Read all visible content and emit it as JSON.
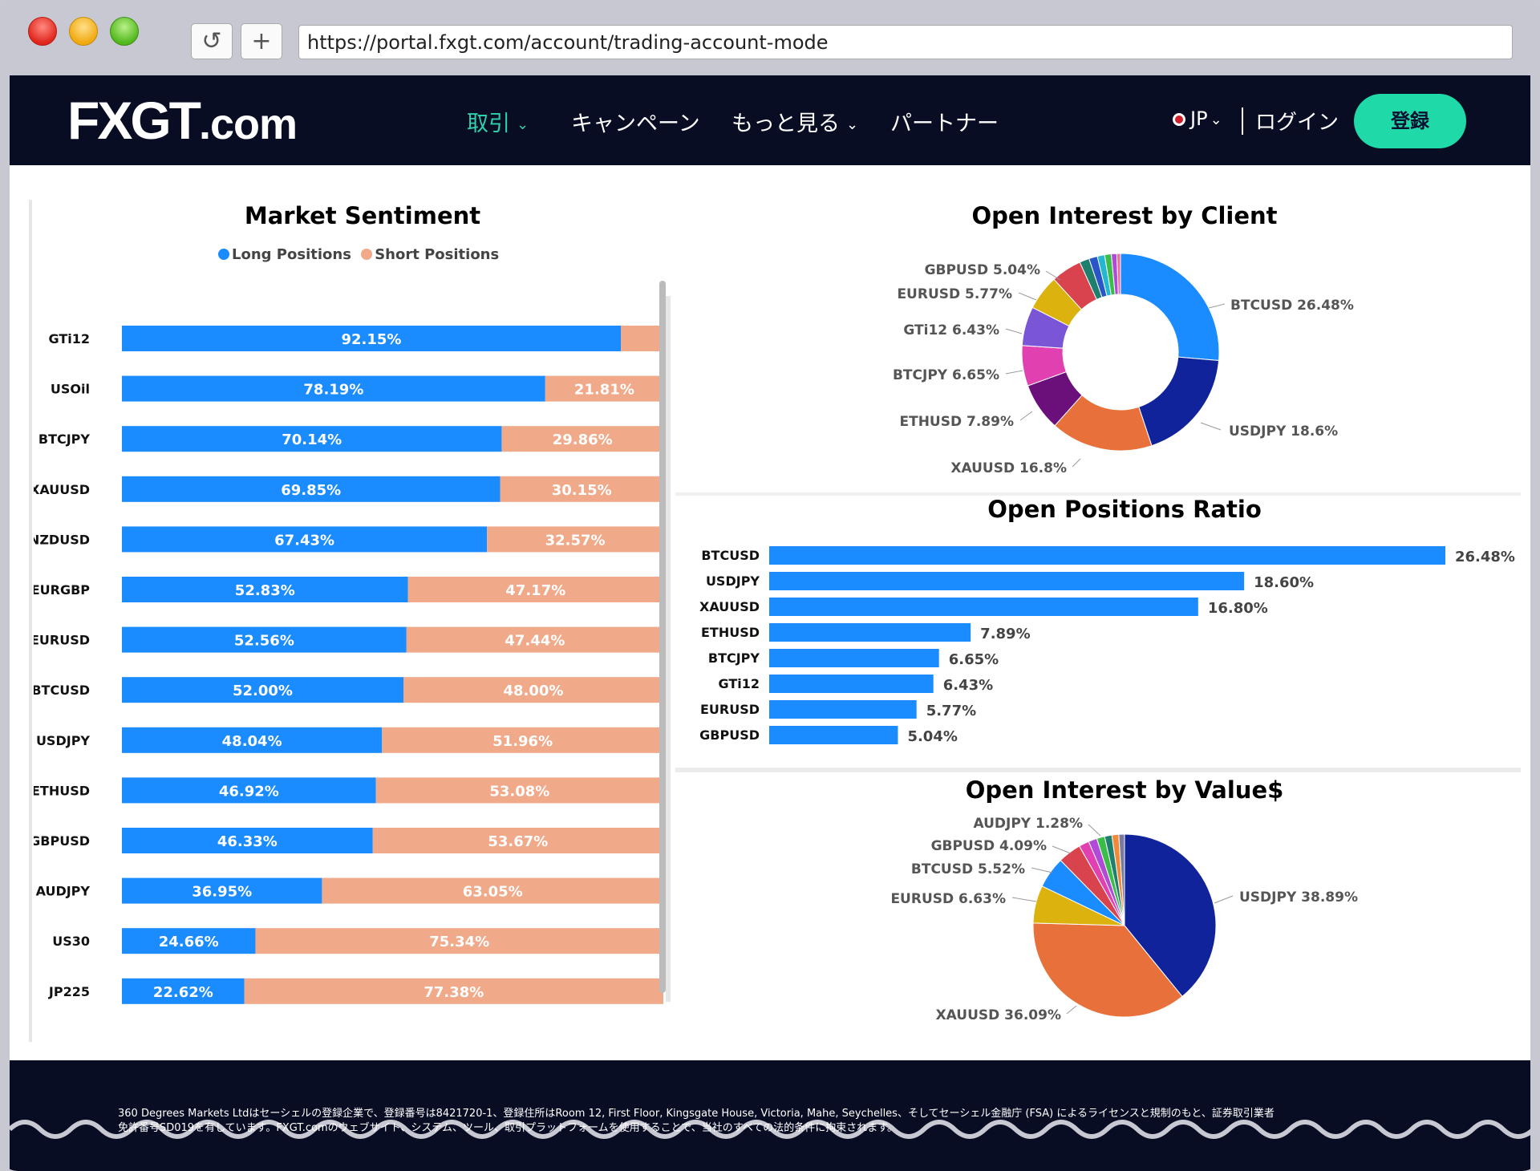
{
  "browser": {
    "url": "https://portal.fxgt.com/account/trading-account-mode",
    "reload_icon": "reload-icon",
    "newtab_icon": "plus-icon"
  },
  "nav": {
    "logo_main": "FXGT",
    "logo_suffix": ".com",
    "items": [
      {
        "label": "取引",
        "dropdown": true,
        "active": true
      },
      {
        "label": "キャンペーン",
        "dropdown": false,
        "active": false
      },
      {
        "label": "もっと見る",
        "dropdown": true,
        "active": false
      },
      {
        "label": "パートナー",
        "dropdown": false,
        "active": false
      }
    ],
    "lang": "JP",
    "login": "ログイン",
    "register": "登録",
    "accent": "#1fd9a8"
  },
  "colors": {
    "long": "#1a8cff",
    "short": "#f0a989"
  },
  "sentiment": {
    "title": "Market Sentiment",
    "legend_long": "Long Positions",
    "legend_short": "Short Positions"
  },
  "client_pie": {
    "title": "Open Interest by Client"
  },
  "ratio": {
    "title": "Open Positions Ratio"
  },
  "value_pie": {
    "title": "Open Interest by Value$"
  },
  "chart_data": [
    {
      "type": "bar",
      "title": "Market Sentiment",
      "stacked": true,
      "orientation": "horizontal",
      "categories": [
        "GTi12",
        "USOil",
        "BTCJPY",
        "XAUUSD",
        "NZDUSD",
        "EURGBP",
        "EURUSD",
        "BTCUSD",
        "USDJPY",
        "ETHUSD",
        "GBPUSD",
        "AUDJPY",
        "US30",
        "JP225"
      ],
      "series": [
        {
          "name": "Long Positions",
          "values": [
            92.15,
            78.19,
            70.14,
            69.85,
            67.43,
            52.83,
            52.56,
            52.0,
            48.04,
            46.92,
            46.33,
            36.95,
            24.66,
            22.62
          ],
          "labels": [
            "92.15%",
            "78.19%",
            "70.14%",
            "69.85%",
            "67.43%",
            "52.83%",
            "52.56%",
            "52.00%",
            "48.04%",
            "46.92%",
            "46.33%",
            "36.95%",
            "24.66%",
            "22.62%"
          ]
        },
        {
          "name": "Short Positions",
          "values": [
            7.85,
            21.81,
            29.86,
            30.15,
            32.57,
            47.17,
            47.44,
            48.0,
            51.96,
            53.08,
            53.67,
            63.05,
            75.34,
            77.38
          ],
          "labels": [
            "",
            "21.81%",
            "29.86%",
            "30.15%",
            "32.57%",
            "47.17%",
            "47.44%",
            "48.00%",
            "51.96%",
            "53.08%",
            "53.67%",
            "63.05%",
            "75.34%",
            "77.38%"
          ]
        }
      ],
      "legend": "top"
    },
    {
      "type": "pie",
      "donut": true,
      "title": "Open Interest by Client",
      "labels": [
        "BTCUSD",
        "USDJPY",
        "XAUUSD",
        "ETHUSD",
        "BTCJPY",
        "GTi12",
        "EURUSD",
        "GBPUSD",
        "other1",
        "other2",
        "other3",
        "other4",
        "other5",
        "other6"
      ],
      "values": [
        26.48,
        18.6,
        16.8,
        7.89,
        6.65,
        6.43,
        5.77,
        5.04,
        1.6,
        1.4,
        1.2,
        1.1,
        0.9,
        0.6
      ],
      "display_labels": [
        "BTCUSD 26.48%",
        "USDJPY 18.6%",
        "XAUUSD 16.8%",
        "ETHUSD 7.89%",
        "BTCJPY 6.65%",
        "GTi12 6.43%",
        "EURUSD 5.77%",
        "GBPUSD 5.04%",
        "",
        "",
        "",
        "",
        "",
        ""
      ],
      "colors": [
        "#1a8cff",
        "#10239a",
        "#e8703a",
        "#6b0f7a",
        "#e040b0",
        "#7a55d6",
        "#dbb20e",
        "#d9434e",
        "#1f7f6e",
        "#2a55c8",
        "#24b8d0",
        "#3bbd4a",
        "#b14ad6",
        "#f06a9a"
      ]
    },
    {
      "type": "bar",
      "orientation": "horizontal",
      "title": "Open Positions Ratio",
      "categories": [
        "BTCUSD",
        "USDJPY",
        "XAUUSD",
        "ETHUSD",
        "BTCJPY",
        "GTi12",
        "EURUSD",
        "GBPUSD"
      ],
      "values": [
        26.48,
        18.6,
        16.8,
        7.89,
        6.65,
        6.43,
        5.77,
        5.04
      ],
      "labels": [
        "26.48%",
        "18.60%",
        "16.80%",
        "7.89%",
        "6.65%",
        "6.43%",
        "5.77%",
        "5.04%"
      ]
    },
    {
      "type": "pie",
      "title": "Open Interest by Value$",
      "labels": [
        "USDJPY",
        "XAUUSD",
        "EURUSD",
        "BTCUSD",
        "GBPUSD",
        "other1",
        "other2",
        "other3",
        "AUDJPY",
        "other4",
        "other5"
      ],
      "values": [
        38.89,
        36.09,
        6.63,
        5.52,
        4.09,
        1.8,
        1.5,
        1.4,
        1.28,
        1.2,
        1.0
      ],
      "display_labels": [
        "USDJPY 38.89%",
        "XAUUSD 36.09%",
        "EURUSD 6.63%",
        "BTCUSD 5.52%",
        "GBPUSD 4.09%",
        "",
        "",
        "",
        "AUDJPY 1.28%",
        "",
        ""
      ],
      "colors": [
        "#10239a",
        "#e8703a",
        "#dbb20e",
        "#1a8cff",
        "#d9434e",
        "#e040b0",
        "#b14ad6",
        "#3bbd4a",
        "#1f7f6e",
        "#f08a3a",
        "#7a7aa0"
      ]
    }
  ],
  "footer": {
    "line1": "360 Degrees Markets Ltdはセーシェルの登録企業で、登録番号は8421720-1、登録住所はRoom 12, First Floor, Kingsgate House, Victoria, Mahe, Seychelles、そしてセーシェル金融庁 (FSA) によるライセンスと規制のもと、証券取引業者",
    "line2": "免許番号SD019を有しています。FXGT.comのウェブサイト、システム、ツール、取引プラットフォームを使用することで、当社のすべての法的条件に拘束されます。"
  }
}
